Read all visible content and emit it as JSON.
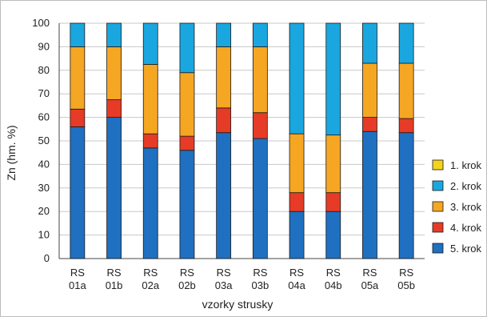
{
  "chart_data": {
    "type": "bar",
    "stacked": true,
    "title": "",
    "xlabel": "vzorky strusky",
    "ylabel": "Zn (hm. %)",
    "ylim": [
      0,
      100
    ],
    "yticks": [
      "0",
      "10",
      "20",
      "30",
      "40",
      "50",
      "60",
      "70",
      "80",
      "90",
      "100"
    ],
    "grid": "horizontal",
    "legend_position": "right",
    "categories": [
      [
        "RS",
        "01a"
      ],
      [
        "RS",
        "01b"
      ],
      [
        "RS",
        "02a"
      ],
      [
        "RS",
        "02b"
      ],
      [
        "RS",
        "03a"
      ],
      [
        "RS",
        "03b"
      ],
      [
        "RS",
        "04a"
      ],
      [
        "RS",
        "04b"
      ],
      [
        "RS",
        "05a"
      ],
      [
        "RS",
        "05b"
      ]
    ],
    "series": [
      {
        "name": "5. krok",
        "color": "#1f70c1",
        "values": [
          56,
          60,
          47,
          46,
          53.5,
          51,
          20,
          20,
          54,
          53.5
        ]
      },
      {
        "name": "4. krok",
        "color": "#e63b26",
        "values": [
          7.5,
          7.5,
          6,
          6,
          10.5,
          11,
          8,
          8,
          6,
          6
        ]
      },
      {
        "name": "3. krok",
        "color": "#f5a623",
        "values": [
          26.5,
          22.5,
          29.5,
          27,
          26,
          28,
          25,
          24.5,
          23,
          23.5
        ]
      },
      {
        "name": "2. krok",
        "color": "#1aa7e0",
        "values": [
          10,
          10,
          17.5,
          21,
          10,
          10,
          47,
          47.5,
          17,
          17
        ]
      },
      {
        "name": "1. krok",
        "color": "#f5d31c",
        "values": [
          0,
          0,
          0,
          0,
          0,
          0,
          0,
          0,
          0,
          0
        ]
      }
    ],
    "legend_order": [
      "1. krok",
      "2. krok",
      "3. krok",
      "4. krok",
      "5. krok"
    ]
  }
}
